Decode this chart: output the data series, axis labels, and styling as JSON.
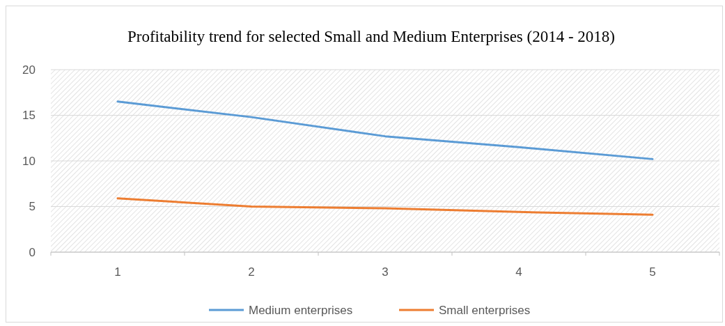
{
  "chart_data": {
    "type": "line",
    "title": "Profitability trend for  selected Small and Medium Enterprises (2014 - 2018)",
    "categories": [
      "1",
      "2",
      "3",
      "4",
      "5"
    ],
    "series": [
      {
        "name": "Medium enterprises",
        "color": "#5b9bd5",
        "values": [
          16.5,
          14.8,
          12.7,
          11.5,
          10.2
        ]
      },
      {
        "name": "Small enterprises",
        "color": "#ed7d31",
        "values": [
          5.9,
          5.0,
          4.8,
          4.4,
          4.1
        ]
      }
    ],
    "ylim": [
      0,
      20
    ],
    "yticks": [
      0,
      5,
      10,
      15,
      20
    ],
    "grid": "y",
    "legend": "bottom",
    "marker": "none",
    "line_style": "solid"
  }
}
